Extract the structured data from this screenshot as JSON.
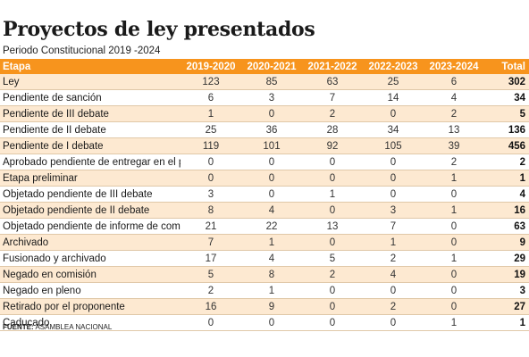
{
  "title": "Proyectos de ley presentados",
  "subtitle": "Periodo Constitucional 2019 -2024",
  "table": {
    "headers": [
      "Etapa",
      "2019-2020",
      "2020-2021",
      "2021-2022",
      "2022-2023",
      "2023-2024",
      "Total"
    ],
    "rows": [
      [
        "Ley",
        "123",
        "85",
        "63",
        "25",
        "6",
        "302"
      ],
      [
        "Pendiente de sanción",
        "6",
        "3",
        "7",
        "14",
        "4",
        "34"
      ],
      [
        "Pendiente de III debate",
        "1",
        "0",
        "2",
        "0",
        "2",
        "5"
      ],
      [
        "Pendiente de II debate",
        "25",
        "36",
        "28",
        "34",
        "13",
        "136"
      ],
      [
        "Pendiente de I debate",
        "119",
        "101",
        "92",
        "105",
        "39",
        "456"
      ],
      [
        "Aprobado pendiente de entregar en el pleno",
        "0",
        "0",
        "0",
        "0",
        "2",
        "2"
      ],
      [
        "Etapa preliminar",
        "0",
        "0",
        "0",
        "0",
        "1",
        "1"
      ],
      [
        "Objetado pendiente de III debate",
        "3",
        "0",
        "1",
        "0",
        "0",
        "4"
      ],
      [
        "Objetado pendiente de II debate",
        "8",
        "4",
        "0",
        "3",
        "1",
        "16"
      ],
      [
        "Objetado pendiente de informe de comisión",
        "21",
        "22",
        "13",
        "7",
        "0",
        "63"
      ],
      [
        "Archivado",
        "7",
        "1",
        "0",
        "1",
        "0",
        "9"
      ],
      [
        "Fusionado y archivado",
        "17",
        "4",
        "5",
        "2",
        "1",
        "29"
      ],
      [
        "Negado en comisión",
        "5",
        "8",
        "2",
        "4",
        "0",
        "19"
      ],
      [
        "Negado en pleno",
        "2",
        "1",
        "0",
        "0",
        "0",
        "3"
      ],
      [
        "Retirado por el proponente",
        "16",
        "9",
        "0",
        "2",
        "0",
        "27"
      ],
      [
        "Caducado",
        "0",
        "0",
        "0",
        "0",
        "1",
        "1"
      ]
    ]
  },
  "source": {
    "label": "FUENTE:",
    "text": "ASAMBLEA NACIONAL"
  },
  "colors": {
    "header_bg": "#f7941d",
    "stripe_bg": "#fde9d1"
  }
}
